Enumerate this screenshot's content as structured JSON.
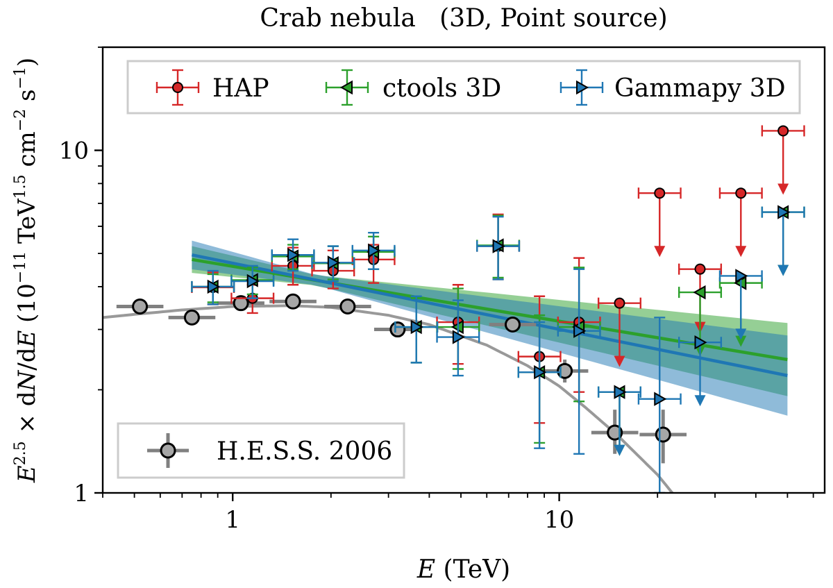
{
  "chart_data": {
    "type": "scatter",
    "title": "Crab nebula   (3D, Point source)",
    "xlabel": "E (TeV)",
    "ylabel": "E^2.5 × dN/dE  (10^-11 TeV^1.5 cm^-2 s^-1)",
    "xscale": "log",
    "yscale": "log",
    "xlim": [
      0.4,
      65
    ],
    "ylim": [
      1,
      20
    ],
    "xticks": [
      {
        "value": 1,
        "label": "1"
      },
      {
        "value": 10,
        "label": "10"
      }
    ],
    "yticks": [
      {
        "value": 1,
        "label": "1"
      },
      {
        "value": 10,
        "label": "10"
      }
    ],
    "colors": {
      "hap": "#d62728",
      "ctools": "#2ca02c",
      "gammapy": "#1f77b4",
      "hess": "#808080"
    },
    "legend_upper": {
      "location": "top",
      "entries": [
        "HAP",
        "ctools 3D",
        "Gammapy 3D"
      ]
    },
    "legend_lower": {
      "location": "lower-left",
      "entries": [
        "H.E.S.S. 2006"
      ]
    },
    "series": [
      {
        "name": "HAP",
        "color": "#d62728",
        "marker": "circle",
        "points": [
          {
            "x": 0.87,
            "y": 3.98,
            "ylo": 3.55,
            "yhi": 4.4
          },
          {
            "x": 1.15,
            "y": 3.7,
            "ylo": 3.35,
            "yhi": 4.05
          },
          {
            "x": 1.53,
            "y": 4.6,
            "ylo": 4.05,
            "yhi": 5.2
          },
          {
            "x": 2.03,
            "y": 4.45,
            "ylo": 3.95,
            "yhi": 5.1
          },
          {
            "x": 2.7,
            "y": 4.8,
            "ylo": 4.1,
            "yhi": 5.3
          },
          {
            "x": 4.9,
            "y": 3.15,
            "ylo": 2.38,
            "yhi": 4.05
          },
          {
            "x": 6.5,
            "y": 5.25,
            "ylo": 4.2,
            "yhi": 6.5
          },
          {
            "x": 8.7,
            "y": 2.5,
            "ylo": 1.6,
            "yhi": 3.75
          },
          {
            "x": 11.5,
            "y": 3.15,
            "ylo": 1.97,
            "yhi": 4.85
          },
          {
            "x": 15.3,
            "y": 3.58,
            "uplim": true
          },
          {
            "x": 20.3,
            "y": 7.5,
            "uplim": true
          },
          {
            "x": 27.0,
            "y": 4.5,
            "uplim": true
          },
          {
            "x": 36.0,
            "y": 7.5,
            "uplim": true
          },
          {
            "x": 48.5,
            "y": 11.4,
            "uplim": true
          }
        ]
      },
      {
        "name": "ctools 3D",
        "color": "#2ca02c",
        "marker": "triangle-left",
        "points": [
          {
            "x": 0.87,
            "y": 4.0,
            "ylo": 3.6,
            "yhi": 4.35
          },
          {
            "x": 1.15,
            "y": 4.18,
            "ylo": 3.8,
            "yhi": 4.55
          },
          {
            "x": 1.53,
            "y": 4.9,
            "ylo": 4.5,
            "yhi": 5.3
          },
          {
            "x": 2.03,
            "y": 4.68,
            "ylo": 4.2,
            "yhi": 5.25
          },
          {
            "x": 2.7,
            "y": 5.05,
            "ylo": 4.5,
            "yhi": 5.6
          },
          {
            "x": 3.65,
            "y": 3.05,
            "ylo": 2.4,
            "yhi": 3.7
          },
          {
            "x": 4.9,
            "y": 3.05,
            "ylo": 2.3,
            "yhi": 3.95
          },
          {
            "x": 6.5,
            "y": 5.28,
            "ylo": 4.25,
            "yhi": 6.45
          },
          {
            "x": 8.7,
            "y": 2.25,
            "ylo": 1.4,
            "yhi": 3.3
          },
          {
            "x": 11.5,
            "y": 3.05,
            "ylo": 1.85,
            "yhi": 4.55
          },
          {
            "x": 15.3,
            "y": 1.97,
            "uplim": true
          },
          {
            "x": 27.0,
            "y": 3.85,
            "uplim": true
          },
          {
            "x": 36.0,
            "y": 4.1,
            "uplim": true
          },
          {
            "x": 48.5,
            "y": 6.6,
            "uplim": true
          }
        ]
      },
      {
        "name": "Gammapy 3D",
        "color": "#1f77b4",
        "marker": "triangle-right",
        "points": [
          {
            "x": 0.87,
            "y": 4.0,
            "ylo": 3.55,
            "yhi": 4.45
          },
          {
            "x": 1.15,
            "y": 4.15,
            "ylo": 3.7,
            "yhi": 4.6
          },
          {
            "x": 1.53,
            "y": 4.95,
            "ylo": 4.45,
            "yhi": 5.5
          },
          {
            "x": 2.03,
            "y": 4.7,
            "ylo": 4.15,
            "yhi": 5.25
          },
          {
            "x": 2.7,
            "y": 5.1,
            "ylo": 4.5,
            "yhi": 5.75
          },
          {
            "x": 3.65,
            "y": 3.05,
            "ylo": 2.4,
            "yhi": 3.75
          },
          {
            "x": 4.9,
            "y": 2.85,
            "ylo": 2.2,
            "yhi": 3.65
          },
          {
            "x": 6.5,
            "y": 5.25,
            "ylo": 4.2,
            "yhi": 6.4
          },
          {
            "x": 8.7,
            "y": 2.25,
            "ylo": 1.35,
            "yhi": 3.15
          },
          {
            "x": 11.5,
            "y": 2.97,
            "ylo": 1.3,
            "yhi": 4.5
          },
          {
            "x": 15.3,
            "y": 1.97,
            "uplim": true
          },
          {
            "x": 20.3,
            "y": 1.88,
            "ylo": 1.0,
            "yhi": 3.25
          },
          {
            "x": 27.0,
            "y": 2.75,
            "uplim": true
          },
          {
            "x": 36.0,
            "y": 4.3,
            "uplim": true
          },
          {
            "x": 48.5,
            "y": 6.6,
            "uplim": true
          }
        ]
      },
      {
        "name": "H.E.S.S. 2006",
        "color": "#808080",
        "marker": "open-circle",
        "points": [
          {
            "x": 0.52,
            "y": 3.5,
            "ylo": 3.4,
            "yhi": 3.6
          },
          {
            "x": 0.75,
            "y": 3.25,
            "ylo": 3.15,
            "yhi": 3.35
          },
          {
            "x": 1.06,
            "y": 3.58,
            "ylo": 3.48,
            "yhi": 3.68
          },
          {
            "x": 1.53,
            "y": 3.62,
            "ylo": 3.5,
            "yhi": 3.74
          },
          {
            "x": 2.25,
            "y": 3.5,
            "ylo": 3.38,
            "yhi": 3.62
          },
          {
            "x": 3.2,
            "y": 3.0,
            "ylo": 2.88,
            "yhi": 3.12
          },
          {
            "x": 7.2,
            "y": 3.1,
            "ylo": 2.95,
            "yhi": 3.25
          },
          {
            "x": 10.4,
            "y": 2.27,
            "ylo": 2.1,
            "yhi": 2.45
          },
          {
            "x": 14.8,
            "y": 1.5,
            "ylo": 1.3,
            "yhi": 1.75
          },
          {
            "x": 20.8,
            "y": 1.48,
            "ylo": 1.22,
            "yhi": 1.75
          }
        ]
      }
    ],
    "model_curves": [
      {
        "name": "H.E.S.S. 2006 fit",
        "color": "#999999",
        "x": [
          0.4,
          0.5,
          0.7,
          1.0,
          1.5,
          2.0,
          3.0,
          4.0,
          6.0,
          8.0,
          10.0,
          12.0,
          15.0,
          20.0,
          25.0,
          30.0
        ],
        "y": [
          3.25,
          3.32,
          3.42,
          3.5,
          3.52,
          3.48,
          3.3,
          3.1,
          2.7,
          2.35,
          2.05,
          1.78,
          1.48,
          1.13,
          0.87,
          0.68
        ]
      },
      {
        "name": "ctools 3D fit",
        "color": "#2ca02c",
        "x": [
          0.75,
          50.0
        ],
        "y": [
          4.8,
          2.45
        ],
        "band_lo": [
          4.55,
          2.0
        ],
        "band_hi": [
          5.1,
          3.05
        ]
      },
      {
        "name": "Gammapy 3D fit",
        "color": "#1f77b4",
        "x": [
          0.75,
          50.0
        ],
        "y": [
          4.95,
          2.2
        ],
        "band_lo": [
          4.6,
          1.75
        ],
        "band_hi": [
          5.4,
          2.8
        ]
      }
    ]
  }
}
